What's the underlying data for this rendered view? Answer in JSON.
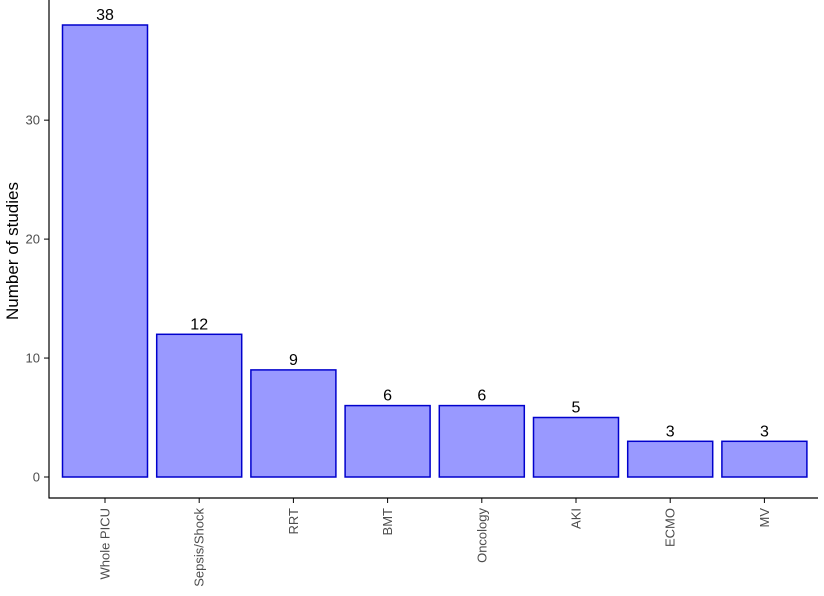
{
  "chart_data": {
    "type": "bar",
    "categories": [
      "Whole PICU",
      "Sepsis/Shock",
      "RRT",
      "BMT",
      "Oncology",
      "AKI",
      "ECMO",
      "MV"
    ],
    "values": [
      38,
      12,
      9,
      6,
      6,
      5,
      3,
      3
    ],
    "data_labels": [
      "38",
      "12",
      "9",
      "6",
      "6",
      "5",
      "3",
      "3"
    ],
    "title": "",
    "xlabel": "",
    "ylabel": "Number of studies",
    "ylim": [
      0,
      39.5
    ],
    "yticks": [
      0,
      10,
      20,
      30
    ],
    "ytick_labels": [
      "0",
      "10",
      "20",
      "30"
    ],
    "grid": false,
    "legend": "none",
    "colors": {
      "bar_fill": "#9999ff",
      "bar_stroke": "#0000cc",
      "axis": "#000000"
    }
  }
}
